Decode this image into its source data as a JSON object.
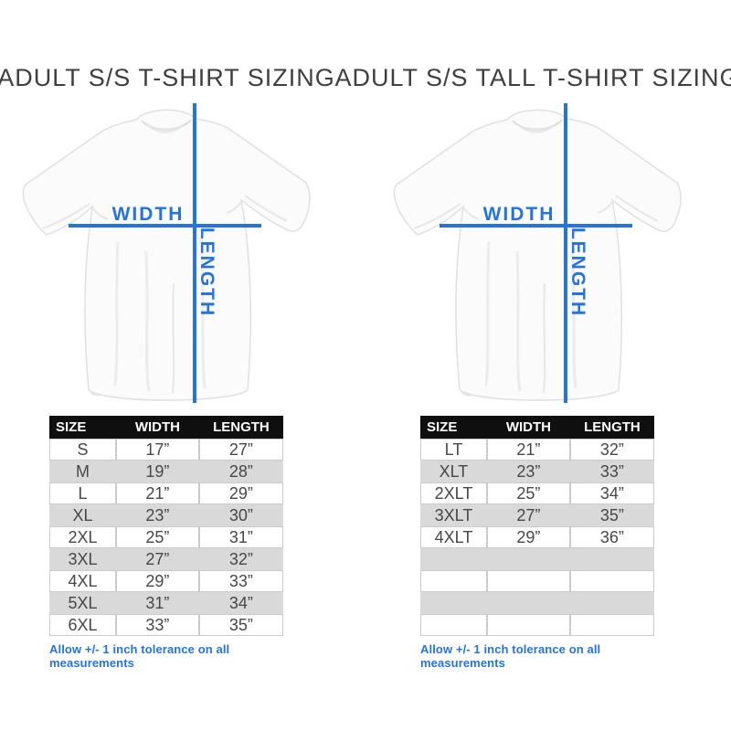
{
  "colors": {
    "accent": "#2573dc",
    "title": "#3f3f3f",
    "row_gray": "#d9d9d9",
    "header_bg": "#0f0f0f"
  },
  "panels": [
    {
      "title": "ADULT S/S T-SHIRT SIZING",
      "diagram": {
        "width_label": "WIDTH",
        "length_label": "LENGTH"
      },
      "table": {
        "headers": [
          "SIZE",
          "WIDTH",
          "LENGTH"
        ],
        "rows": [
          [
            "S",
            "17”",
            "27”"
          ],
          [
            "M",
            "19”",
            "28”"
          ],
          [
            "L",
            "21”",
            "29”"
          ],
          [
            "XL",
            "23”",
            "30”"
          ],
          [
            "2XL",
            "25”",
            "31”"
          ],
          [
            "3XL",
            "27”",
            "32”"
          ],
          [
            "4XL",
            "29”",
            "33”"
          ],
          [
            "5XL",
            "31”",
            "34”"
          ],
          [
            "6XL",
            "33”",
            "35”"
          ]
        ]
      },
      "tolerance_note": "Allow +/- 1 inch tolerance on all measurements"
    },
    {
      "title": "ADULT S/S TALL T-SHIRT SIZING",
      "diagram": {
        "width_label": "WIDTH",
        "length_label": "LENGTH"
      },
      "table": {
        "headers": [
          "SIZE",
          "WIDTH",
          "LENGTH"
        ],
        "rows": [
          [
            "LT",
            "21”",
            "32”"
          ],
          [
            "XLT",
            "23”",
            "33”"
          ],
          [
            "2XLT",
            "25”",
            "34”"
          ],
          [
            "3XLT",
            "27”",
            "35”"
          ],
          [
            "4XLT",
            "29”",
            "36”"
          ],
          [
            "",
            "",
            ""
          ],
          [
            "",
            "",
            ""
          ],
          [
            "",
            "",
            ""
          ],
          [
            "",
            "",
            ""
          ]
        ]
      },
      "tolerance_note": "Allow +/- 1 inch tolerance on all measurements"
    }
  ]
}
